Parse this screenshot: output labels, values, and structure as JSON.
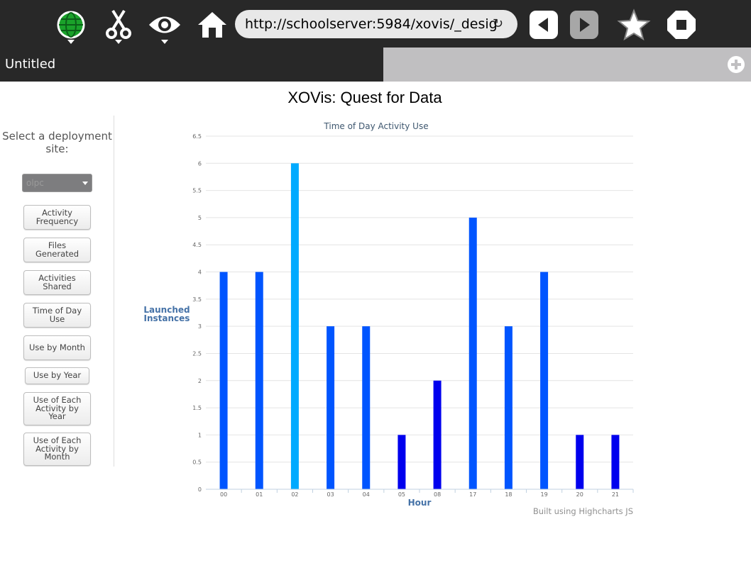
{
  "browser": {
    "url": "http://schoolserver:5984/xovis/_desig",
    "tab_title": "Untitled"
  },
  "icons": {
    "network": "globe-icon",
    "edit": "scissors-icon",
    "view": "eye-icon",
    "home": "home-icon",
    "reload": "reload-icon",
    "back": "back-arrow-icon",
    "forward": "forward-arrow-icon",
    "bookmark": "star-icon",
    "stop": "stop-icon",
    "add_tab": "plus-icon"
  },
  "page": {
    "title": "XOVis: Quest for Data"
  },
  "sidebar": {
    "select_label": "Select a deployment site:",
    "site_value": "olpc",
    "buttons": [
      "Activity Frequency",
      "Files Generated",
      "Activities Shared",
      "Time of Day Use",
      "Use by Month",
      "Use by Year",
      "Use of Each Activity by Year",
      "Use of Each Activity by Month"
    ]
  },
  "colors": {
    "bar_default": "#0055ff",
    "bar_highlight": "#00aaff",
    "bar_low": "#0000ee",
    "axis_title": "#4572a7"
  },
  "chart_data": {
    "type": "bar",
    "title": "Time of Day Activity Use",
    "xlabel": "Hour",
    "ylabel": "Launched Instances",
    "categories": [
      "00",
      "01",
      "02",
      "03",
      "04",
      "05",
      "08",
      "17",
      "18",
      "19",
      "20",
      "21"
    ],
    "values": [
      4,
      4,
      6,
      3,
      3,
      1,
      2,
      5,
      3,
      4,
      1,
      1
    ],
    "ylim": [
      0,
      6.5
    ],
    "yticks": [
      "0",
      "0.5",
      "1",
      "1.5",
      "2",
      "2.5",
      "3",
      "3.5",
      "4",
      "4.5",
      "5",
      "5.5",
      "6",
      "6.5"
    ],
    "grid": true,
    "credits": "Built using Highcharts JS"
  }
}
